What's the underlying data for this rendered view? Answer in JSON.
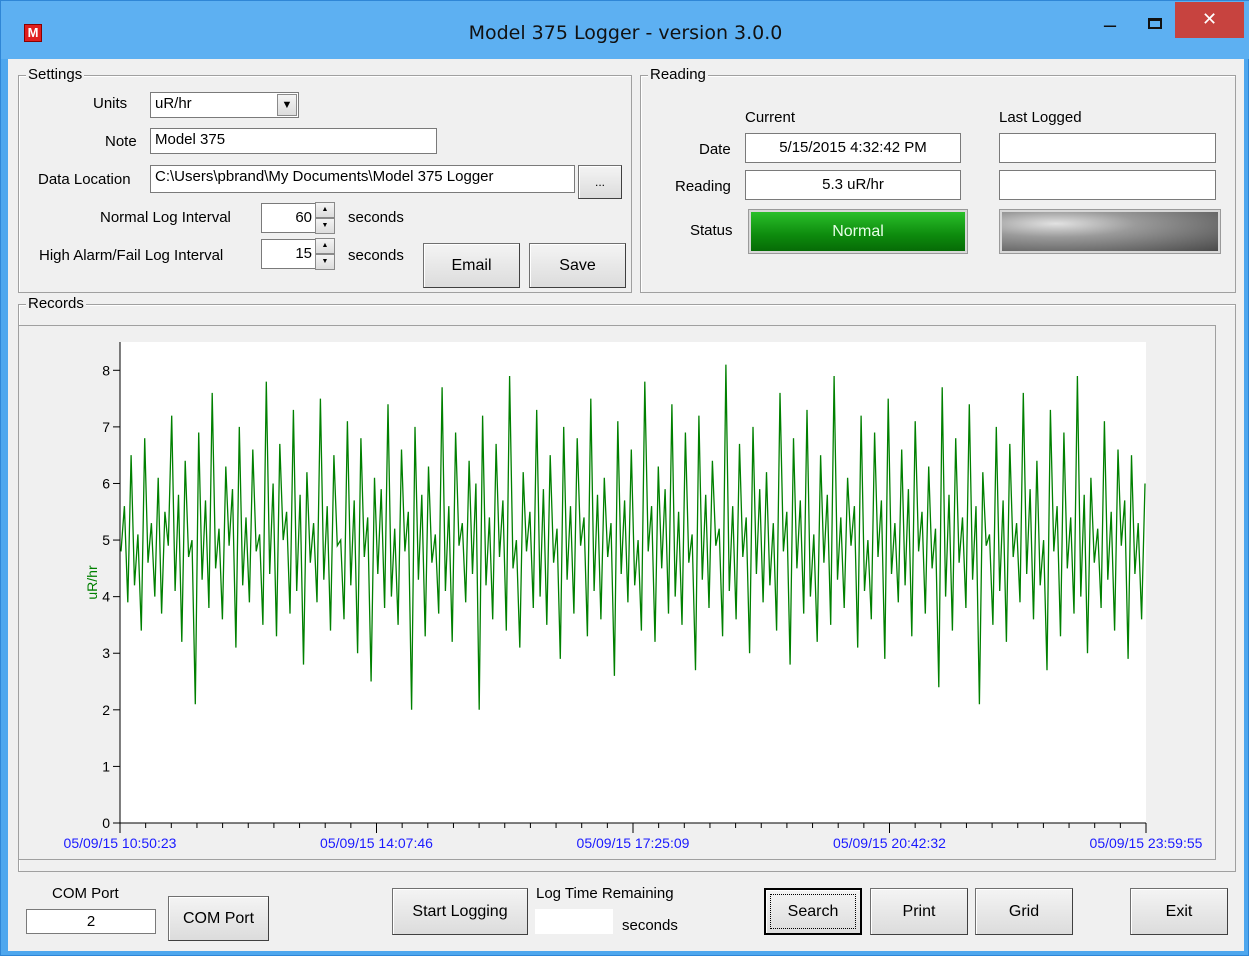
{
  "window": {
    "title": "Model 375 Logger - version 3.0.0",
    "app_icon_glyph": "M",
    "minimize_glyph": "–",
    "close_glyph": "✕"
  },
  "settings": {
    "legend": "Settings",
    "units_label": "Units",
    "units_value": "uR/hr",
    "note_label": "Note",
    "note_value": "Model 375",
    "data_location_label": "Data Location",
    "data_location_value": "C:\\Users\\pbrand\\My Documents\\Model 375 Logger",
    "browse_label": "...",
    "normal_interval_label": "Normal Log Interval",
    "normal_interval_value": "60",
    "high_interval_label": "High Alarm/Fail Log Interval",
    "high_interval_value": "15",
    "seconds_label": "seconds",
    "email_label": "Email",
    "save_label": "Save"
  },
  "reading": {
    "legend": "Reading",
    "current_header": "Current",
    "last_logged_header": "Last Logged",
    "date_label": "Date",
    "reading_label": "Reading",
    "status_label": "Status",
    "current_date": "5/15/2015 4:32:42 PM",
    "current_reading": "5.3 uR/hr",
    "current_status": "Normal",
    "current_status_color": "#0d8a0d",
    "last_date": "",
    "last_reading": "",
    "last_status": ""
  },
  "records": {
    "legend": "Records"
  },
  "chart_data": {
    "type": "line",
    "ylabel": "uR/hr",
    "ylim": [
      0,
      8.5
    ],
    "y_ticks": [
      "0",
      "1",
      "2",
      "3",
      "4",
      "5",
      "6",
      "7",
      "8"
    ],
    "x_tick_labels": [
      "05/09/15 10:50:23",
      "05/09/15 14:07:46",
      "05/09/15 17:25:09",
      "05/09/15 20:42:32",
      "05/09/15 23:59:55"
    ],
    "series_color": "#008000",
    "tick_label_color": "#1a1aff",
    "series": [
      {
        "values": [
          4.8,
          5.6,
          3.9,
          6.5,
          4.2,
          5.1,
          3.4,
          6.8,
          4.6,
          5.3,
          4.0,
          6.1,
          3.7,
          5.5,
          4.9,
          7.2,
          4.1,
          5.8,
          3.2,
          6.4,
          4.7,
          5.0,
          2.1,
          6.9,
          4.3,
          5.7,
          3.8,
          7.6,
          4.5,
          5.2,
          3.6,
          6.3,
          4.9,
          5.9,
          3.1,
          7.0,
          4.2,
          5.4,
          3.9,
          6.6,
          4.8,
          5.1,
          3.5,
          7.8,
          4.4,
          6.0,
          3.3,
          6.7,
          5.0,
          5.5,
          3.7,
          7.3,
          4.1,
          5.8,
          2.8,
          6.2,
          4.6,
          5.3,
          3.9,
          7.5,
          4.3,
          5.6,
          3.4,
          6.5,
          4.9,
          5.0,
          3.6,
          7.1,
          4.2,
          5.7,
          3.0,
          6.8,
          4.7,
          5.4,
          2.5,
          6.1,
          4.4,
          5.9,
          3.8,
          7.4,
          4.0,
          5.2,
          3.5,
          6.6,
          4.8,
          5.5,
          2.0,
          7.0,
          4.3,
          5.8,
          3.3,
          6.3,
          4.6,
          5.1,
          3.7,
          7.7,
          4.1,
          5.6,
          3.2,
          6.9,
          4.9,
          5.3,
          3.9,
          6.4,
          4.4,
          6.0,
          2.0,
          7.2,
          4.2,
          5.4,
          3.6,
          6.7,
          4.7,
          5.7,
          3.4,
          7.9,
          4.5,
          5.0,
          3.1,
          6.2,
          4.8,
          5.5,
          3.8,
          7.3,
          4.0,
          5.9,
          3.5,
          6.5,
          4.6,
          5.2,
          2.9,
          7.0,
          4.3,
          5.6,
          3.7,
          6.8,
          4.9,
          5.4,
          3.3,
          7.5,
          4.1,
          5.8,
          3.6,
          6.1,
          4.7,
          5.3,
          2.6,
          7.1,
          4.4,
          5.7,
          3.9,
          6.6,
          4.2,
          5.0,
          3.4,
          7.8,
          4.8,
          5.6,
          3.2,
          6.3,
          4.5,
          5.9,
          3.7,
          7.4,
          4.0,
          5.5,
          3.5,
          6.9,
          4.6,
          5.1,
          2.7,
          7.2,
          4.3,
          5.8,
          3.8,
          6.4,
          4.9,
          5.2,
          3.3,
          8.1,
          4.1,
          5.6,
          3.6,
          6.7,
          4.7,
          5.4,
          3.0,
          7.0,
          4.4,
          5.9,
          3.9,
          6.2,
          4.2,
          5.3,
          3.4,
          7.6,
          4.8,
          5.5,
          2.8,
          6.8,
          4.5,
          5.7,
          3.7,
          7.3,
          4.0,
          5.1,
          3.2,
          6.5,
          4.6,
          5.8,
          3.5,
          7.9,
          4.3,
          5.4,
          3.8,
          6.1,
          4.9,
          5.6,
          3.1,
          7.2,
          4.1,
          5.0,
          3.6,
          6.9,
          4.7,
          5.7,
          2.9,
          7.5,
          4.4,
          5.3,
          3.9,
          6.6,
          4.2,
          5.9,
          3.3,
          7.1,
          4.8,
          5.5,
          3.7,
          6.3,
          4.5,
          5.2,
          2.4,
          7.7,
          4.0,
          5.8,
          3.4,
          6.8,
          4.6,
          5.4,
          3.8,
          7.4,
          4.3,
          5.6,
          2.1,
          6.2,
          4.9,
          5.1,
          3.5,
          7.0,
          4.1,
          5.7,
          3.2,
          6.7,
          4.7,
          5.3,
          3.9,
          7.6,
          4.4,
          5.9,
          3.6,
          6.4,
          4.2,
          5.0,
          2.7,
          7.3,
          4.8,
          5.6,
          3.3,
          6.9,
          4.5,
          5.4,
          3.7,
          7.9,
          4.0,
          5.8,
          3.0,
          6.1,
          4.6,
          5.2,
          3.8,
          7.1,
          4.3,
          5.5,
          3.4,
          6.6,
          4.9,
          5.7,
          2.9,
          6.5,
          4.4,
          5.3,
          3.6,
          6.0
        ],
        "x_range_start": "05/09/15 10:50:23",
        "x_range_end": "05/09/15 23:59:55"
      }
    ]
  },
  "bottom": {
    "com_port_header": "COM Port",
    "com_port_value": "2",
    "com_port_button": "COM Port",
    "start_logging": "Start Logging",
    "log_time_header": "Log Time Remaining",
    "log_time_value": "",
    "seconds_label": "seconds",
    "search": "Search",
    "print": "Print",
    "grid": "Grid",
    "exit": "Exit"
  }
}
